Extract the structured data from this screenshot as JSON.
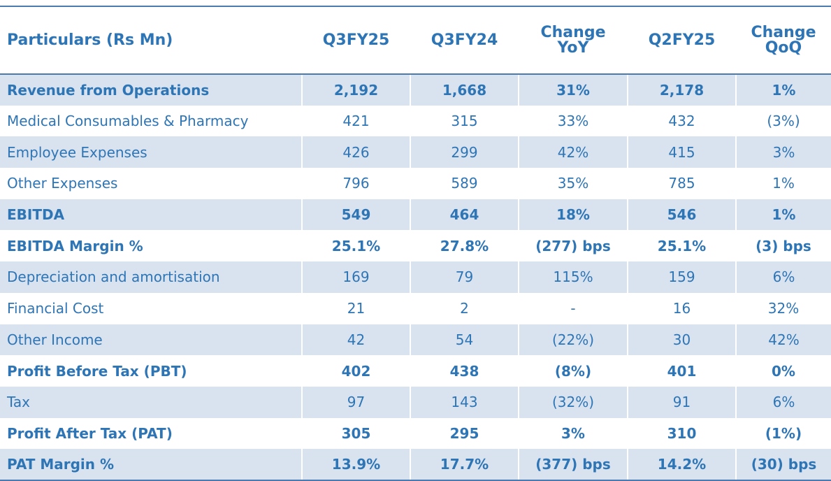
{
  "header": [
    "Particulars (Rs Mn)",
    "Q3FY25",
    "Q3FY24",
    "Change YoY",
    "Q2FY25",
    "Change QoQ"
  ],
  "rows": [
    {
      "cells": [
        "Revenue from Operations",
        "2,192",
        "1,668",
        "31%",
        "2,178",
        "1%"
      ],
      "bold": true,
      "shade": true
    },
    {
      "cells": [
        "Medical Consumables & Pharmacy",
        "421",
        "315",
        "33%",
        "432",
        "(3%)"
      ],
      "bold": false,
      "shade": false
    },
    {
      "cells": [
        "Employee Expenses",
        "426",
        "299",
        "42%",
        "415",
        "3%"
      ],
      "bold": false,
      "shade": true
    },
    {
      "cells": [
        "Other Expenses",
        "796",
        "589",
        "35%",
        "785",
        "1%"
      ],
      "bold": false,
      "shade": false
    },
    {
      "cells": [
        "EBITDA",
        "549",
        "464",
        "18%",
        "546",
        "1%"
      ],
      "bold": true,
      "shade": true
    },
    {
      "cells": [
        "EBITDA Margin %",
        "25.1%",
        "27.8%",
        "(277) bps",
        "25.1%",
        "(3) bps"
      ],
      "bold": true,
      "shade": false
    },
    {
      "cells": [
        "Depreciation and amortisation",
        "169",
        "79",
        "115%",
        "159",
        "6%"
      ],
      "bold": false,
      "shade": true
    },
    {
      "cells": [
        "Financial Cost",
        "21",
        "2",
        "-",
        "16",
        "32%"
      ],
      "bold": false,
      "shade": false
    },
    {
      "cells": [
        "Other Income",
        "42",
        "54",
        "(22%)",
        "30",
        "42%"
      ],
      "bold": false,
      "shade": true
    },
    {
      "cells": [
        "Profit Before Tax (PBT)",
        "402",
        "438",
        "(8%)",
        "401",
        "0%"
      ],
      "bold": true,
      "shade": false
    },
    {
      "cells": [
        "Tax",
        "97",
        "143",
        "(32%)",
        "91",
        "6%"
      ],
      "bold": false,
      "shade": true
    },
    {
      "cells": [
        "Profit After Tax (PAT)",
        "305",
        "295",
        "3%",
        "310",
        "(1%)"
      ],
      "bold": true,
      "shade": false
    },
    {
      "cells": [
        "PAT Margin %",
        "13.9%",
        "17.7%",
        "(377) bps",
        "14.2%",
        "(30) bps"
      ],
      "bold": true,
      "shade": true
    }
  ]
}
